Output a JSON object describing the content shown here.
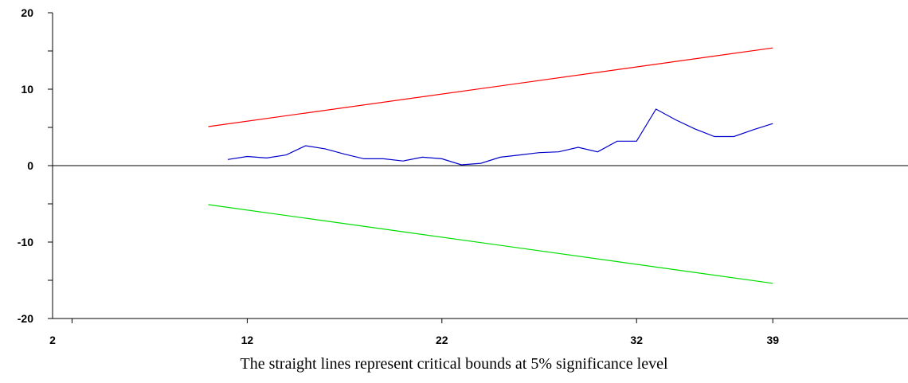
{
  "chart_data": {
    "type": "line",
    "title": "",
    "xlabel": "",
    "ylabel": "",
    "caption": "The straight lines represent critical bounds at 5% significance level",
    "xlim": [
      2,
      41.9
    ],
    "ylim": [
      -20,
      20
    ],
    "x_tick_labels": [
      {
        "value": 2,
        "label": "2"
      },
      {
        "value": 12,
        "label": "12"
      },
      {
        "value": 22,
        "label": "22"
      },
      {
        "value": 32,
        "label": "32"
      },
      {
        "value": 39,
        "label": "39"
      }
    ],
    "x_minor_ticks": [
      3
    ],
    "y_ticks": [
      -20,
      -15,
      -10,
      -5,
      0,
      5,
      10,
      15,
      20
    ],
    "y_tick_labels": [
      {
        "value": 20,
        "label": "20"
      },
      {
        "value": 10,
        "label": "10"
      },
      {
        "value": 0,
        "label": "0"
      },
      {
        "value": -10,
        "label": "-10"
      },
      {
        "value": -20,
        "label": "-20"
      }
    ],
    "grid": false,
    "legend": "none",
    "zero_line": true,
    "series": [
      {
        "key": "upper_bound",
        "color": "#ff0000",
        "x": [
          10,
          39
        ],
        "y": [
          5.1,
          15.4
        ]
      },
      {
        "key": "cusum",
        "color": "#0000cc",
        "x": [
          11,
          12,
          13,
          14,
          15,
          16,
          17,
          18,
          19,
          20,
          21,
          22,
          23,
          24,
          25,
          26,
          27,
          28,
          29,
          30,
          31,
          32,
          33,
          34,
          35,
          36,
          37,
          38,
          39
        ],
        "y": [
          0.8,
          1.2,
          1.0,
          1.4,
          2.6,
          2.2,
          1.5,
          0.9,
          0.9,
          0.6,
          1.1,
          0.9,
          0.1,
          0.3,
          1.1,
          1.4,
          1.7,
          1.8,
          2.4,
          1.8,
          3.2,
          3.2,
          7.4,
          6.0,
          4.8,
          3.8,
          3.8,
          4.7,
          5.5
        ]
      },
      {
        "key": "lower_bound",
        "color": "#00dd00",
        "x": [
          10,
          39
        ],
        "y": [
          -5.1,
          -15.4
        ]
      }
    ]
  }
}
